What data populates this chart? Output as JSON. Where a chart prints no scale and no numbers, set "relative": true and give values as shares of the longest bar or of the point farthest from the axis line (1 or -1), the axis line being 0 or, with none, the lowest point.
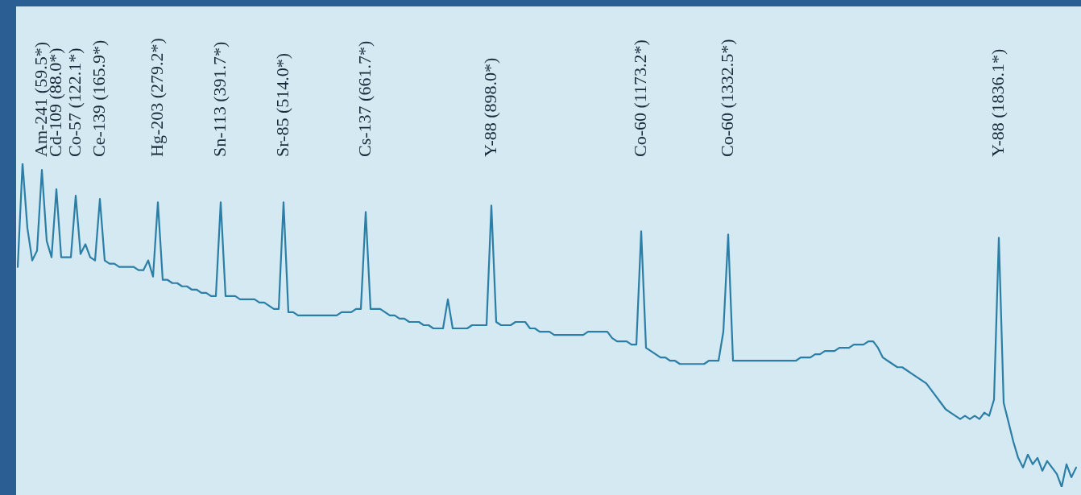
{
  "chart_data": {
    "type": "line",
    "relative": true,
    "tick_labels": false,
    "grid": false,
    "legend": false,
    "marker": "none",
    "line_style": "solid",
    "categories": [
      null,
      null,
      null,
      null,
      null,
      null,
      null,
      null,
      null,
      null,
      null,
      null,
      null,
      null,
      null,
      null,
      null,
      null,
      null,
      null,
      null,
      null,
      null,
      null,
      null,
      null,
      null,
      null,
      null,
      null,
      null,
      null,
      null,
      null,
      null,
      null,
      null,
      null,
      null,
      null,
      null,
      null,
      null,
      null,
      null,
      null,
      null,
      null,
      null,
      null,
      null,
      null,
      null,
      null,
      null,
      null,
      null,
      null,
      null,
      null,
      null,
      null,
      null,
      null,
      null,
      null,
      null,
      null,
      null,
      null,
      null,
      null,
      null,
      null,
      null,
      null,
      null,
      null,
      null,
      null,
      null,
      null,
      null,
      null,
      null,
      null,
      null,
      null,
      null,
      null,
      null,
      null,
      null,
      null,
      null,
      null,
      null,
      null,
      null,
      null,
      null,
      null,
      null,
      null,
      null,
      null,
      null,
      null,
      null,
      null,
      null,
      null,
      null,
      null,
      null,
      null,
      null,
      null,
      null,
      null,
      null,
      null,
      null,
      null,
      null,
      null,
      null,
      null,
      null,
      null,
      null,
      null,
      null,
      null,
      null,
      null,
      null,
      null,
      null,
      null,
      null,
      null,
      null,
      null,
      null,
      null,
      null,
      null,
      null,
      null,
      null,
      null,
      null,
      null,
      null,
      null,
      null,
      null,
      null,
      null,
      null,
      null,
      null,
      null,
      null,
      null,
      null,
      null,
      null,
      null,
      null,
      null,
      null,
      null,
      null,
      null,
      null,
      null,
      null,
      null,
      null,
      null,
      null,
      null,
      null,
      null,
      null,
      null,
      null,
      null,
      null,
      null,
      null,
      null,
      null,
      null,
      null,
      null,
      null,
      null,
      null,
      null,
      null,
      null,
      null,
      null,
      null,
      null,
      null,
      null,
      null,
      null,
      null,
      null,
      null,
      null,
      null,
      null,
      null,
      null
    ],
    "series": [
      {
        "color": "#2b7ea6",
        "values": [
          0.68,
          1.0,
          0.8,
          0.7,
          0.73,
          0.98,
          0.76,
          0.71,
          0.92,
          0.71,
          0.71,
          0.71,
          0.9,
          0.72,
          0.75,
          0.71,
          0.7,
          0.89,
          0.7,
          0.69,
          0.69,
          0.68,
          0.68,
          0.68,
          0.68,
          0.67,
          0.67,
          0.7,
          0.65,
          0.88,
          0.64,
          0.64,
          0.63,
          0.63,
          0.62,
          0.62,
          0.61,
          0.61,
          0.6,
          0.6,
          0.59,
          0.59,
          0.88,
          0.59,
          0.59,
          0.59,
          0.58,
          0.58,
          0.58,
          0.58,
          0.57,
          0.57,
          0.56,
          0.55,
          0.55,
          0.88,
          0.54,
          0.54,
          0.53,
          0.53,
          0.53,
          0.53,
          0.53,
          0.53,
          0.53,
          0.53,
          0.53,
          0.54,
          0.54,
          0.54,
          0.55,
          0.55,
          0.85,
          0.55,
          0.55,
          0.55,
          0.54,
          0.53,
          0.53,
          0.52,
          0.52,
          0.51,
          0.51,
          0.51,
          0.5,
          0.5,
          0.49,
          0.49,
          0.49,
          0.58,
          0.49,
          0.49,
          0.49,
          0.49,
          0.5,
          0.5,
          0.5,
          0.5,
          0.87,
          0.51,
          0.5,
          0.5,
          0.5,
          0.51,
          0.51,
          0.51,
          0.49,
          0.49,
          0.48,
          0.48,
          0.48,
          0.47,
          0.47,
          0.47,
          0.47,
          0.47,
          0.47,
          0.47,
          0.48,
          0.48,
          0.48,
          0.48,
          0.48,
          0.46,
          0.45,
          0.45,
          0.45,
          0.44,
          0.44,
          0.79,
          0.43,
          0.42,
          0.41,
          0.4,
          0.4,
          0.39,
          0.39,
          0.38,
          0.38,
          0.38,
          0.38,
          0.38,
          0.38,
          0.39,
          0.39,
          0.39,
          0.48,
          0.78,
          0.39,
          0.39,
          0.39,
          0.39,
          0.39,
          0.39,
          0.39,
          0.39,
          0.39,
          0.39,
          0.39,
          0.39,
          0.39,
          0.39,
          0.4,
          0.4,
          0.4,
          0.41,
          0.41,
          0.42,
          0.42,
          0.42,
          0.43,
          0.43,
          0.43,
          0.44,
          0.44,
          0.44,
          0.45,
          0.45,
          0.43,
          0.4,
          0.39,
          0.38,
          0.37,
          0.37,
          0.36,
          0.35,
          0.34,
          0.33,
          0.32,
          0.3,
          0.28,
          0.26,
          0.24,
          0.23,
          0.22,
          0.21,
          0.22,
          0.21,
          0.22,
          0.21,
          0.23,
          0.22,
          0.27,
          0.77,
          0.26,
          0.2,
          0.14,
          0.09,
          0.06,
          0.1,
          0.07,
          0.09,
          0.05,
          0.08,
          0.06,
          0.04,
          0.0,
          0.07,
          0.03,
          0.06
        ]
      }
    ],
    "annotations": [
      "Am-241 (59.5*)",
      "Cd-109 (88.0*)",
      "Co-57 (122.1*)",
      "Ce-139 (165.9*)",
      "Hg-203 (279.2*)",
      "Sn-113 (391.7*)",
      "Sr-85 (514.0*)",
      "Cs-137 (661.7*)",
      "Y-88 (898.0*)",
      "Co-60 (1173.2*)",
      "Co-60 (1332.5*)",
      "Y-88 (1836.1*)"
    ]
  }
}
